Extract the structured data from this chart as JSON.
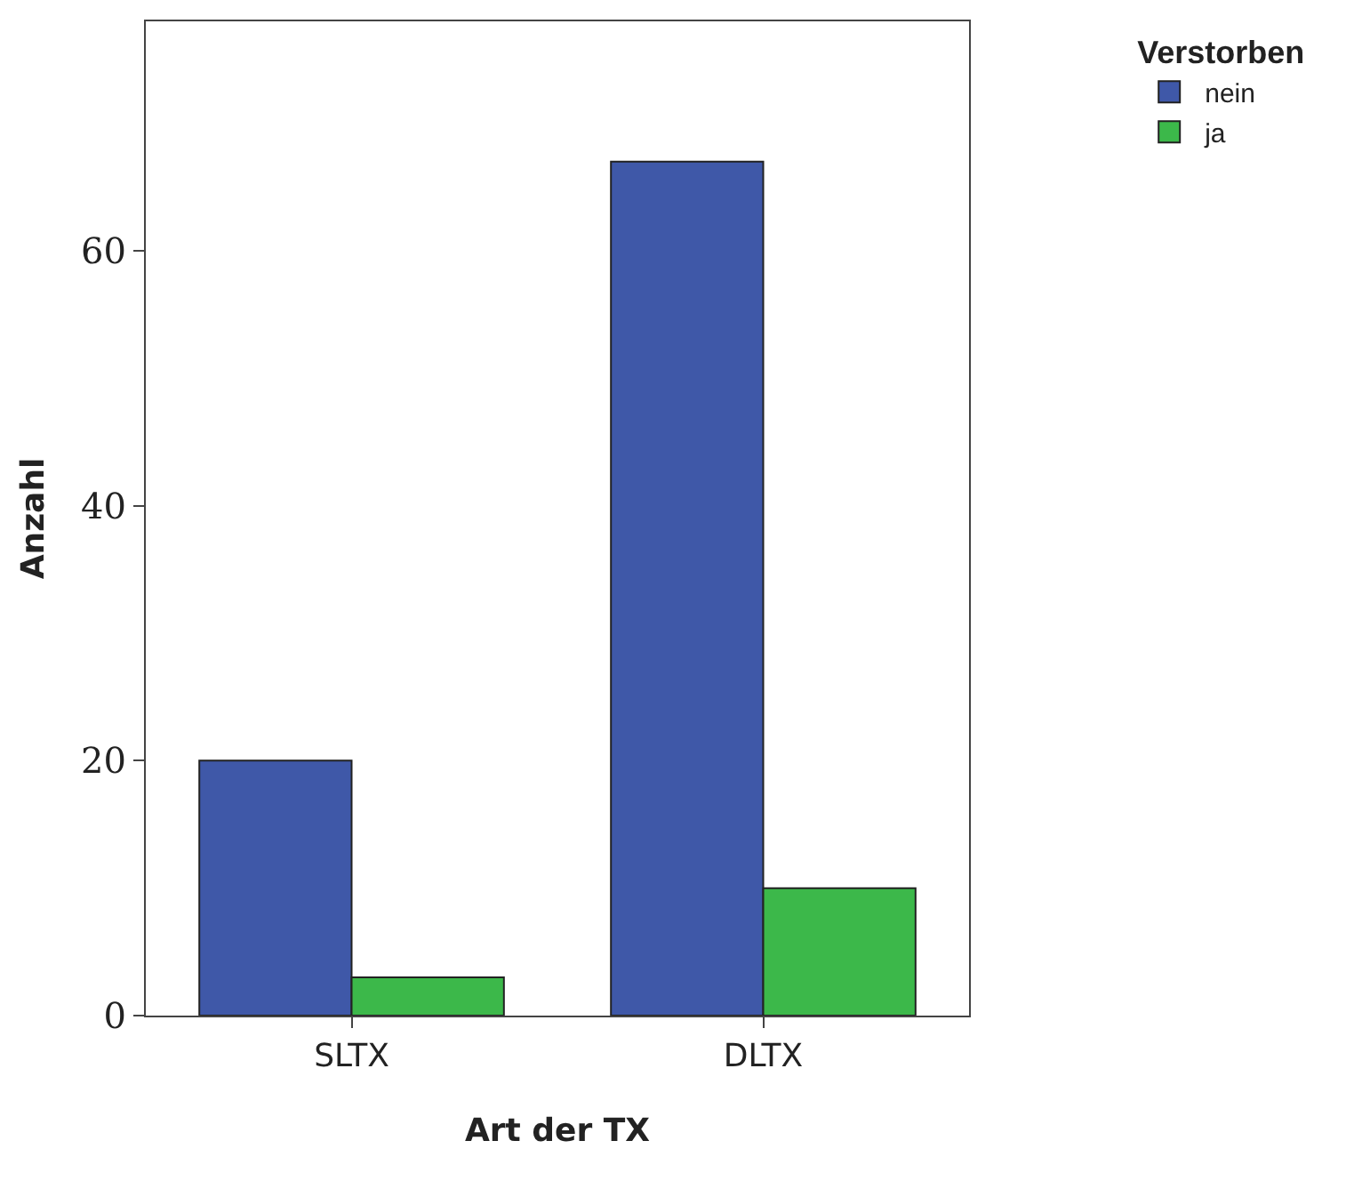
{
  "chart_data": {
    "type": "bar",
    "xlabel": "Art der TX",
    "ylabel": "Anzahl",
    "legend_title": "Verstorben",
    "categories": [
      "SLTX",
      "DLTX"
    ],
    "series": [
      {
        "name": "nein",
        "color": "#3f58a8",
        "values": [
          20,
          67
        ]
      },
      {
        "name": "ja",
        "color": "#3cb84a",
        "values": [
          3,
          10
        ]
      }
    ],
    "ylim": [
      0,
      78
    ],
    "yticks": [
      0,
      20,
      40,
      60
    ],
    "legend": "top right"
  }
}
